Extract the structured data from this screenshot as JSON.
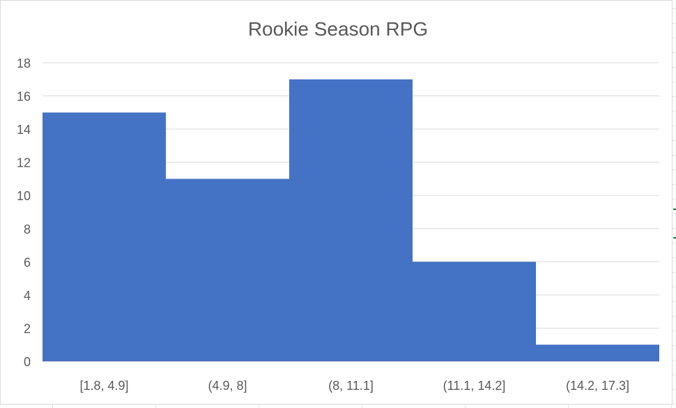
{
  "chart_data": {
    "type": "bar",
    "title": "Rookie Season RPG",
    "xlabel": "",
    "ylabel": "",
    "categories": [
      "[1.8, 4.9]",
      "(4.9, 8]",
      "(8, 11.1]",
      "(11.1, 14.2]",
      "(14.2, 17.3]"
    ],
    "values": [
      15,
      11,
      17,
      6,
      1
    ],
    "ylim": [
      0,
      18
    ],
    "yticks": [
      0,
      2,
      4,
      6,
      8,
      10,
      12,
      14,
      16,
      18
    ],
    "grid": true,
    "legend": "none",
    "bar_color": "#4472c4",
    "gridline_color": "#d9d9d9",
    "label_color": "#595959"
  }
}
